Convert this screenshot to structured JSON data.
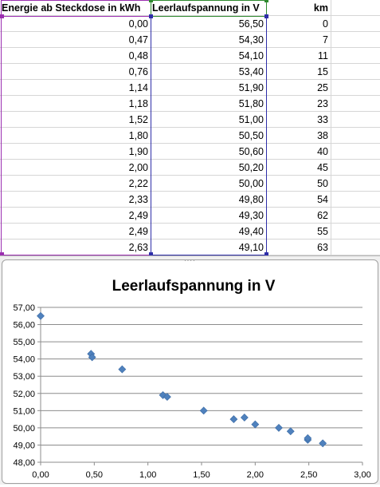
{
  "sheet": {
    "headers": [
      "Energie ab Steckdose in kWh",
      "Leerlaufspannung in V",
      "km"
    ],
    "rows": [
      [
        "0,00",
        "56,50",
        "0"
      ],
      [
        "0,47",
        "54,30",
        "7"
      ],
      [
        "0,48",
        "54,10",
        "11"
      ],
      [
        "0,76",
        "53,40",
        "15"
      ],
      [
        "1,14",
        "51,90",
        "25"
      ],
      [
        "1,18",
        "51,80",
        "23"
      ],
      [
        "1,52",
        "51,00",
        "33"
      ],
      [
        "1,80",
        "50,50",
        "38"
      ],
      [
        "1,90",
        "50,60",
        "40"
      ],
      [
        "2,00",
        "50,20",
        "45"
      ],
      [
        "2,22",
        "50,00",
        "50"
      ],
      [
        "2,33",
        "49,80",
        "54"
      ],
      [
        "2,49",
        "49,30",
        "62"
      ],
      [
        "2,49",
        "49,40",
        "55"
      ],
      [
        "2,63",
        "49,10",
        "63"
      ]
    ],
    "range_colors": {
      "x_range": "#9b2fb0",
      "y_range": "#2e2ea8",
      "series_name": "#2e8a2e"
    }
  },
  "chart_data": {
    "type": "scatter",
    "title": "Leerlaufspannung in V",
    "xlabel": "",
    "ylabel": "",
    "xlim": [
      0,
      3
    ],
    "ylim": [
      48,
      57
    ],
    "x_ticks": [
      0,
      0.5,
      1,
      1.5,
      2,
      2.5,
      3
    ],
    "x_tick_labels": [
      "0,00",
      "0,50",
      "1,00",
      "1,50",
      "2,00",
      "2,50",
      "3,00"
    ],
    "y_ticks": [
      48,
      49,
      50,
      51,
      52,
      53,
      54,
      55,
      56,
      57
    ],
    "y_tick_labels": [
      "48,00",
      "49,00",
      "50,00",
      "51,00",
      "52,00",
      "53,00",
      "54,00",
      "55,00",
      "56,00",
      "57,00"
    ],
    "grid": "horizontal",
    "legend": "none",
    "marker": "diamond",
    "marker_color": "#4f81bd",
    "series": [
      {
        "x": [
          0.0,
          0.47,
          0.48,
          0.76,
          1.14,
          1.18,
          1.52,
          1.8,
          1.9,
          2.0,
          2.22,
          2.33,
          2.49,
          2.49,
          2.63
        ],
        "y": [
          56.5,
          54.3,
          54.1,
          53.4,
          51.9,
          51.8,
          51.0,
          50.5,
          50.6,
          50.2,
          50.0,
          49.8,
          49.3,
          49.4,
          49.1
        ]
      }
    ]
  }
}
